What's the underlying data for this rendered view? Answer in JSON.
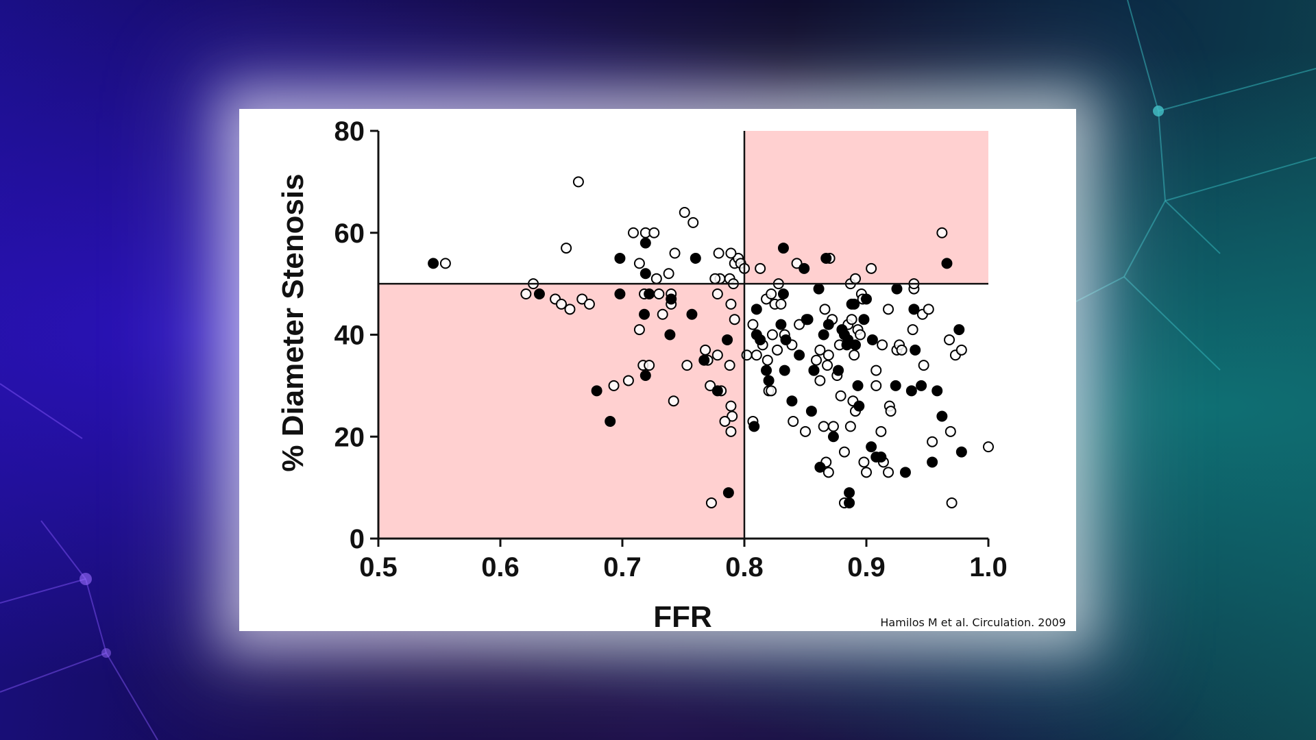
{
  "slide": {
    "citation": "Hamilos M et al. Circulation. 2009"
  },
  "colors": {
    "highlight_region": "#ffd0d0",
    "marker_edge": "#000000",
    "filled_marker": "#000000",
    "background_left": "#1a0f86",
    "background_right": "#0e4750"
  },
  "chart_data": {
    "type": "scatter",
    "title": "",
    "xlabel": "FFR",
    "ylabel": "% Diameter Stenosis",
    "xlim": [
      0.5,
      1.0
    ],
    "ylim": [
      0,
      80
    ],
    "xticks": [
      "0.5",
      "0.6",
      "0.7",
      "0.8",
      "0.9",
      "1.0"
    ],
    "yticks": [
      "0",
      "20",
      "40",
      "60",
      "80"
    ],
    "grid": false,
    "reference_lines": {
      "x": 0.8,
      "y": 50
    },
    "shaded_regions": [
      {
        "x": [
          0.5,
          0.8
        ],
        "y": [
          0,
          50
        ]
      },
      {
        "x": [
          0.8,
          1.0
        ],
        "y": [
          50,
          80
        ]
      }
    ],
    "series": [
      {
        "marker": "open-circle",
        "points": [
          [
            0.555,
            54
          ],
          [
            0.627,
            50
          ],
          [
            0.621,
            48
          ],
          [
            0.645,
            47
          ],
          [
            0.65,
            46
          ],
          [
            0.657,
            45
          ],
          [
            0.667,
            47
          ],
          [
            0.673,
            46
          ],
          [
            0.664,
            70
          ],
          [
            0.654,
            57
          ],
          [
            0.709,
            60
          ],
          [
            0.719,
            60
          ],
          [
            0.726,
            60
          ],
          [
            0.714,
            54
          ],
          [
            0.728,
            51
          ],
          [
            0.738,
            52
          ],
          [
            0.743,
            56
          ],
          [
            0.751,
            64
          ],
          [
            0.758,
            62
          ],
          [
            0.718,
            48
          ],
          [
            0.73,
            48
          ],
          [
            0.74,
            48
          ],
          [
            0.733,
            44
          ],
          [
            0.74,
            46
          ],
          [
            0.714,
            41
          ],
          [
            0.717,
            34
          ],
          [
            0.722,
            34
          ],
          [
            0.705,
            31
          ],
          [
            0.693,
            30
          ],
          [
            0.742,
            27
          ],
          [
            0.753,
            34
          ],
          [
            0.768,
            37
          ],
          [
            0.77,
            35
          ],
          [
            0.772,
            30
          ],
          [
            0.778,
            48
          ],
          [
            0.78,
            51
          ],
          [
            0.776,
            51
          ],
          [
            0.788,
            51
          ],
          [
            0.779,
            56
          ],
          [
            0.792,
            54
          ],
          [
            0.795,
            55
          ],
          [
            0.797,
            54
          ],
          [
            0.789,
            56
          ],
          [
            0.791,
            50
          ],
          [
            0.789,
            46
          ],
          [
            0.792,
            43
          ],
          [
            0.778,
            36
          ],
          [
            0.788,
            34
          ],
          [
            0.781,
            29
          ],
          [
            0.789,
            26
          ],
          [
            0.79,
            24
          ],
          [
            0.784,
            23
          ],
          [
            0.789,
            21
          ],
          [
            0.773,
            7
          ],
          [
            0.8,
            53
          ],
          [
            0.802,
            36
          ],
          [
            0.807,
            23
          ],
          [
            0.813,
            53
          ],
          [
            0.807,
            42
          ],
          [
            0.81,
            36
          ],
          [
            0.815,
            38
          ],
          [
            0.818,
            47
          ],
          [
            0.822,
            48
          ],
          [
            0.823,
            40
          ],
          [
            0.825,
            46
          ],
          [
            0.819,
            35
          ],
          [
            0.82,
            29
          ],
          [
            0.822,
            29
          ],
          [
            0.828,
            50
          ],
          [
            0.83,
            46
          ],
          [
            0.833,
            40
          ],
          [
            0.827,
            37
          ],
          [
            0.839,
            38
          ],
          [
            0.843,
            54
          ],
          [
            0.845,
            42
          ],
          [
            0.84,
            23
          ],
          [
            0.85,
            21
          ],
          [
            0.852,
            43
          ],
          [
            0.857,
            33
          ],
          [
            0.859,
            35
          ],
          [
            0.862,
            37
          ],
          [
            0.865,
            22
          ],
          [
            0.866,
            45
          ],
          [
            0.862,
            31
          ],
          [
            0.868,
            34
          ],
          [
            0.869,
            36
          ],
          [
            0.869,
            13
          ],
          [
            0.867,
            15
          ],
          [
            0.87,
            55
          ],
          [
            0.872,
            43
          ],
          [
            0.876,
            32
          ],
          [
            0.873,
            22
          ],
          [
            0.878,
            38
          ],
          [
            0.879,
            28
          ],
          [
            0.882,
            17
          ],
          [
            0.882,
            7
          ],
          [
            0.885,
            42
          ],
          [
            0.887,
            50
          ],
          [
            0.888,
            43
          ],
          [
            0.89,
            36
          ],
          [
            0.891,
            25
          ],
          [
            0.887,
            22
          ],
          [
            0.889,
            27
          ],
          [
            0.891,
            51
          ],
          [
            0.893,
            41
          ],
          [
            0.895,
            40
          ],
          [
            0.896,
            48
          ],
          [
            0.897,
            47
          ],
          [
            0.898,
            15
          ],
          [
            0.9,
            13
          ],
          [
            0.904,
            53
          ],
          [
            0.908,
            33
          ],
          [
            0.908,
            30
          ],
          [
            0.912,
            21
          ],
          [
            0.913,
            38
          ],
          [
            0.914,
            15
          ],
          [
            0.918,
            45
          ],
          [
            0.919,
            26
          ],
          [
            0.92,
            25
          ],
          [
            0.918,
            13
          ],
          [
            0.925,
            37
          ],
          [
            0.927,
            38
          ],
          [
            0.929,
            37
          ],
          [
            0.938,
            41
          ],
          [
            0.939,
            49
          ],
          [
            0.939,
            50
          ],
          [
            0.946,
            44
          ],
          [
            0.947,
            34
          ],
          [
            0.951,
            45
          ],
          [
            0.954,
            19
          ],
          [
            0.962,
            60
          ],
          [
            0.968,
            39
          ],
          [
            0.969,
            21
          ],
          [
            0.97,
            7
          ],
          [
            0.973,
            36
          ],
          [
            0.978,
            37
          ],
          [
            1.0,
            18
          ]
        ]
      },
      {
        "marker": "filled-circle",
        "points": [
          [
            0.545,
            54
          ],
          [
            0.632,
            48
          ],
          [
            0.698,
            48
          ],
          [
            0.679,
            29
          ],
          [
            0.69,
            23
          ],
          [
            0.698,
            55
          ],
          [
            0.718,
            44
          ],
          [
            0.719,
            58
          ],
          [
            0.719,
            52
          ],
          [
            0.722,
            48
          ],
          [
            0.719,
            32
          ],
          [
            0.74,
            47
          ],
          [
            0.739,
            40
          ],
          [
            0.757,
            44
          ],
          [
            0.76,
            55
          ],
          [
            0.767,
            35
          ],
          [
            0.786,
            39
          ],
          [
            0.778,
            29
          ],
          [
            0.787,
            9
          ],
          [
            0.81,
            45
          ],
          [
            0.81,
            40
          ],
          [
            0.813,
            39
          ],
          [
            0.808,
            22
          ],
          [
            0.818,
            33
          ],
          [
            0.82,
            31
          ],
          [
            0.832,
            57
          ],
          [
            0.832,
            48
          ],
          [
            0.83,
            42
          ],
          [
            0.834,
            39
          ],
          [
            0.833,
            33
          ],
          [
            0.839,
            27
          ],
          [
            0.845,
            36
          ],
          [
            0.849,
            53
          ],
          [
            0.851,
            43
          ],
          [
            0.855,
            25
          ],
          [
            0.857,
            33
          ],
          [
            0.861,
            49
          ],
          [
            0.862,
            14
          ],
          [
            0.865,
            40
          ],
          [
            0.867,
            55
          ],
          [
            0.869,
            42
          ],
          [
            0.873,
            20
          ],
          [
            0.877,
            33
          ],
          [
            0.88,
            41
          ],
          [
            0.882,
            40
          ],
          [
            0.884,
            38
          ],
          [
            0.885,
            39
          ],
          [
            0.886,
            9
          ],
          [
            0.886,
            7
          ],
          [
            0.888,
            46
          ],
          [
            0.89,
            46
          ],
          [
            0.891,
            38
          ],
          [
            0.893,
            30
          ],
          [
            0.894,
            26
          ],
          [
            0.898,
            43
          ],
          [
            0.9,
            47
          ],
          [
            0.904,
            18
          ],
          [
            0.905,
            39
          ],
          [
            0.908,
            16
          ],
          [
            0.912,
            16
          ],
          [
            0.925,
            49
          ],
          [
            0.924,
            30
          ],
          [
            0.932,
            13
          ],
          [
            0.937,
            29
          ],
          [
            0.939,
            45
          ],
          [
            0.94,
            37
          ],
          [
            0.945,
            30
          ],
          [
            0.954,
            15
          ],
          [
            0.958,
            29
          ],
          [
            0.962,
            24
          ],
          [
            0.966,
            54
          ],
          [
            0.976,
            41
          ],
          [
            0.978,
            17
          ]
        ]
      }
    ]
  }
}
